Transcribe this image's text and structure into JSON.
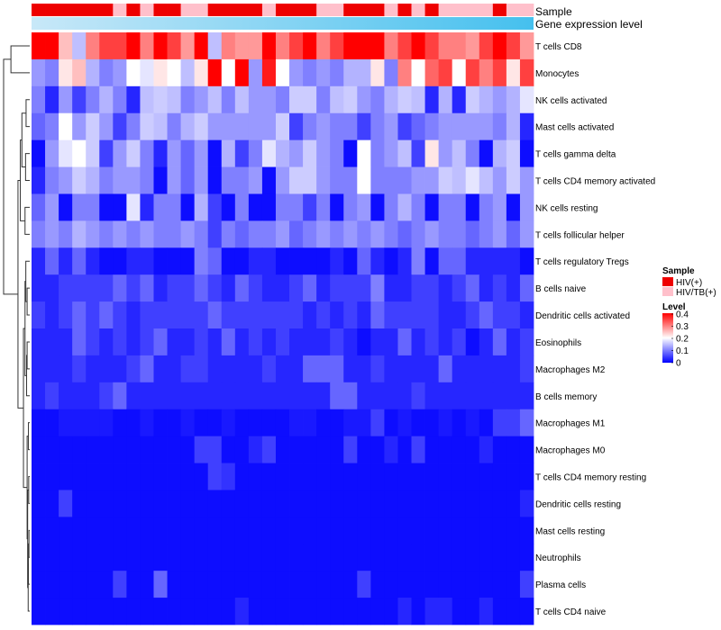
{
  "chart_data": {
    "type": "heatmap",
    "title": "",
    "annotation_tracks": [
      "Sample",
      "Gene expression level"
    ],
    "rows": [
      "T cells CD8",
      "Monocytes",
      "NK cells activated",
      "Mast cells activated",
      "T cells gamma delta",
      "T cells CD4 memory activated",
      "NK cells resting",
      "T cells follicular helper",
      "T cells regulatory  Tregs",
      "B cells naive",
      "Dendritic cells activated",
      "Eosinophils",
      "Macrophages M2",
      "B cells memory",
      "Macrophages M1",
      "Macrophages M0",
      "T cells CD4 memory resting",
      "Dendritic cells resting",
      "Mast cells resting",
      "Neutrophils",
      "Plasma cells",
      "T cells CD4 naive"
    ],
    "n_columns": 37,
    "sample_groups": [
      "HIV(+)",
      "HIV(+)",
      "HIV(+)",
      "HIV(+)",
      "HIV(+)",
      "HIV(+)",
      "HIV/TB(+)",
      "HIV(+)",
      "HIV/TB(+)",
      "HIV(+)",
      "HIV(+)",
      "HIV/TB(+)",
      "HIV/TB(+)",
      "HIV(+)",
      "HIV(+)",
      "HIV(+)",
      "HIV(+)",
      "HIV/TB(+)",
      "HIV(+)",
      "HIV(+)",
      "HIV(+)",
      "HIV/TB(+)",
      "HIV/TB(+)",
      "HIV(+)",
      "HIV(+)",
      "HIV(+)",
      "HIV/TB(+)",
      "HIV(+)",
      "HIV/TB(+)",
      "HIV(+)",
      "HIV/TB(+)",
      "HIV/TB(+)",
      "HIV/TB(+)",
      "HIV/TB(+)",
      "HIV(+)",
      "HIV/TB(+)",
      "HIV/TB(+)"
    ],
    "values": [
      [
        0.4,
        0.4,
        0.25,
        0.15,
        0.3,
        0.35,
        0.35,
        0.4,
        0.3,
        0.4,
        0.35,
        0.28,
        0.4,
        0.15,
        0.3,
        0.28,
        0.28,
        0.4,
        0.3,
        0.35,
        0.4,
        0.3,
        0.35,
        0.4,
        0.4,
        0.4,
        0.3,
        0.35,
        0.4,
        0.35,
        0.3,
        0.3,
        0.28,
        0.35,
        0.4,
        0.35,
        0.28
      ],
      [
        0.12,
        0.1,
        0.22,
        0.25,
        0.14,
        0.1,
        0.12,
        0.2,
        0.18,
        0.22,
        0.2,
        0.15,
        0.22,
        0.4,
        0.2,
        0.4,
        0.12,
        0.38,
        0.2,
        0.12,
        0.1,
        0.12,
        0.1,
        0.14,
        0.14,
        0.22,
        0.1,
        0.3,
        0.2,
        0.32,
        0.35,
        0.2,
        0.35,
        0.3,
        0.35,
        0.22,
        0.35
      ],
      [
        0.1,
        0.03,
        0.12,
        0.05,
        0.1,
        0.14,
        0.1,
        0.03,
        0.15,
        0.16,
        0.15,
        0.1,
        0.12,
        0.15,
        0.1,
        0.15,
        0.12,
        0.12,
        0.1,
        0.16,
        0.16,
        0.1,
        0.15,
        0.16,
        0.12,
        0.1,
        0.14,
        0.16,
        0.15,
        0.03,
        0.14,
        0.03,
        0.16,
        0.14,
        0.12,
        0.14,
        0.18
      ],
      [
        0.08,
        0.1,
        0.2,
        0.12,
        0.16,
        0.12,
        0.05,
        0.1,
        0.16,
        0.15,
        0.1,
        0.14,
        0.16,
        0.12,
        0.12,
        0.12,
        0.12,
        0.12,
        0.16,
        0.05,
        0.1,
        0.12,
        0.1,
        0.1,
        0.05,
        0.1,
        0.12,
        0.05,
        0.08,
        0.1,
        0.12,
        0.12,
        0.12,
        0.12,
        0.1,
        0.14,
        0.03
      ],
      [
        0.01,
        0.12,
        0.18,
        0.2,
        0.16,
        0.05,
        0.12,
        0.16,
        0.1,
        0.03,
        0.12,
        0.08,
        0.12,
        0.01,
        0.14,
        0.05,
        0.1,
        0.18,
        0.14,
        0.12,
        0.16,
        0.12,
        0.1,
        0.01,
        0.2,
        0.1,
        0.12,
        0.15,
        0.05,
        0.22,
        0.12,
        0.15,
        0.1,
        0.01,
        0.14,
        0.16,
        0.01
      ],
      [
        0.03,
        0.1,
        0.12,
        0.16,
        0.14,
        0.1,
        0.12,
        0.12,
        0.1,
        0.01,
        0.12,
        0.08,
        0.12,
        0.01,
        0.1,
        0.1,
        0.12,
        0.01,
        0.12,
        0.16,
        0.16,
        0.12,
        0.1,
        0.1,
        0.2,
        0.1,
        0.1,
        0.1,
        0.12,
        0.12,
        0.16,
        0.15,
        0.18,
        0.15,
        0.12,
        0.16,
        0.12
      ],
      [
        0.08,
        0.12,
        0.01,
        0.1,
        0.1,
        0.01,
        0.01,
        0.18,
        0.03,
        0.1,
        0.1,
        0.01,
        0.14,
        0.05,
        0.01,
        0.1,
        0.01,
        0.01,
        0.1,
        0.1,
        0.05,
        0.1,
        0.01,
        0.1,
        0.12,
        0.01,
        0.1,
        0.14,
        0.1,
        0.01,
        0.1,
        0.1,
        0.01,
        0.1,
        0.12,
        0.01,
        0.12
      ],
      [
        0.1,
        0.12,
        0.1,
        0.14,
        0.12,
        0.1,
        0.12,
        0.1,
        0.12,
        0.1,
        0.1,
        0.12,
        0.1,
        0.05,
        0.1,
        0.08,
        0.1,
        0.1,
        0.12,
        0.08,
        0.1,
        0.12,
        0.1,
        0.12,
        0.1,
        0.12,
        0.1,
        0.08,
        0.1,
        0.12,
        0.1,
        0.1,
        0.08,
        0.1,
        0.12,
        0.08,
        0.12
      ],
      [
        0.03,
        0.08,
        0.03,
        0.08,
        0.03,
        0.01,
        0.01,
        0.03,
        0.03,
        0.01,
        0.01,
        0.01,
        0.1,
        0.08,
        0.01,
        0.01,
        0.03,
        0.03,
        0.01,
        0.01,
        0.01,
        0.01,
        0.03,
        0.01,
        0.08,
        0.03,
        0.01,
        0.03,
        0.1,
        0.01,
        0.08,
        0.08,
        0.03,
        0.03,
        0.03,
        0.03,
        0.01
      ],
      [
        0.03,
        0.03,
        0.05,
        0.05,
        0.05,
        0.05,
        0.08,
        0.05,
        0.08,
        0.03,
        0.05,
        0.05,
        0.08,
        0.05,
        0.03,
        0.08,
        0.05,
        0.03,
        0.03,
        0.05,
        0.08,
        0.03,
        0.05,
        0.05,
        0.05,
        0.1,
        0.03,
        0.03,
        0.05,
        0.05,
        0.03,
        0.05,
        0.08,
        0.03,
        0.05,
        0.03,
        0.08
      ],
      [
        0.05,
        0.03,
        0.05,
        0.08,
        0.05,
        0.08,
        0.05,
        0.03,
        0.05,
        0.05,
        0.05,
        0.05,
        0.05,
        0.08,
        0.05,
        0.05,
        0.05,
        0.05,
        0.05,
        0.05,
        0.03,
        0.05,
        0.03,
        0.05,
        0.03,
        0.08,
        0.05,
        0.05,
        0.05,
        0.05,
        0.03,
        0.03,
        0.05,
        0.08,
        0.05,
        0.05,
        0.03
      ],
      [
        0.03,
        0.03,
        0.03,
        0.08,
        0.05,
        0.03,
        0.05,
        0.03,
        0.05,
        0.08,
        0.03,
        0.03,
        0.05,
        0.03,
        0.08,
        0.03,
        0.05,
        0.03,
        0.05,
        0.03,
        0.03,
        0.03,
        0.05,
        0.03,
        0.01,
        0.03,
        0.03,
        0.08,
        0.03,
        0.05,
        0.03,
        0.05,
        0.01,
        0.03,
        0.08,
        0.03,
        0.05
      ],
      [
        0.03,
        0.03,
        0.03,
        0.05,
        0.03,
        0.03,
        0.03,
        0.05,
        0.08,
        0.03,
        0.03,
        0.05,
        0.05,
        0.03,
        0.03,
        0.03,
        0.03,
        0.05,
        0.03,
        0.03,
        0.08,
        0.08,
        0.08,
        0.03,
        0.03,
        0.05,
        0.03,
        0.03,
        0.03,
        0.03,
        0.08,
        0.03,
        0.03,
        0.03,
        0.03,
        0.03,
        0.05
      ],
      [
        0.03,
        0.05,
        0.03,
        0.03,
        0.03,
        0.05,
        0.08,
        0.03,
        0.03,
        0.03,
        0.03,
        0.03,
        0.03,
        0.03,
        0.03,
        0.03,
        0.03,
        0.03,
        0.03,
        0.03,
        0.03,
        0.03,
        0.08,
        0.08,
        0.03,
        0.03,
        0.03,
        0.03,
        0.05,
        0.03,
        0.03,
        0.03,
        0.03,
        0.03,
        0.03,
        0.03,
        0.03
      ],
      [
        0.01,
        0.01,
        0.02,
        0.02,
        0.02,
        0.02,
        0.01,
        0.01,
        0.02,
        0.01,
        0.01,
        0.02,
        0.01,
        0.01,
        0.02,
        0.01,
        0.01,
        0.01,
        0.01,
        0.02,
        0.02,
        0.01,
        0.01,
        0.02,
        0.02,
        0.05,
        0.01,
        0.02,
        0.01,
        0.01,
        0.02,
        0.01,
        0.02,
        0.01,
        0.05,
        0.05,
        0.08
      ],
      [
        0.01,
        0.01,
        0.01,
        0.01,
        0.01,
        0.01,
        0.01,
        0.01,
        0.01,
        0.01,
        0.01,
        0.01,
        0.05,
        0.05,
        0.01,
        0.01,
        0.03,
        0.05,
        0.01,
        0.01,
        0.01,
        0.01,
        0.01,
        0.05,
        0.01,
        0.01,
        0.03,
        0.01,
        0.05,
        0.01,
        0.01,
        0.01,
        0.01,
        0.03,
        0.01,
        0.01,
        0.01
      ],
      [
        0.01,
        0.01,
        0.01,
        0.01,
        0.01,
        0.01,
        0.01,
        0.01,
        0.01,
        0.01,
        0.01,
        0.01,
        0.01,
        0.05,
        0.04,
        0.01,
        0.01,
        0.01,
        0.01,
        0.01,
        0.01,
        0.01,
        0.01,
        0.01,
        0.01,
        0.01,
        0.01,
        0.01,
        0.01,
        0.01,
        0.01,
        0.01,
        0.01,
        0.01,
        0.01,
        0.01,
        0.01
      ],
      [
        0.01,
        0.01,
        0.05,
        0.01,
        0.01,
        0.01,
        0.01,
        0.01,
        0.01,
        0.01,
        0.01,
        0.01,
        0.01,
        0.01,
        0.01,
        0.01,
        0.01,
        0.01,
        0.01,
        0.01,
        0.01,
        0.01,
        0.01,
        0.01,
        0.01,
        0.01,
        0.01,
        0.01,
        0.01,
        0.01,
        0.01,
        0.01,
        0.01,
        0.01,
        0.01,
        0.01,
        0.03
      ],
      [
        0.01,
        0.01,
        0.01,
        0.01,
        0.01,
        0.01,
        0.01,
        0.01,
        0.01,
        0.01,
        0.01,
        0.01,
        0.01,
        0.01,
        0.01,
        0.01,
        0.01,
        0.01,
        0.01,
        0.01,
        0.01,
        0.01,
        0.01,
        0.01,
        0.01,
        0.01,
        0.01,
        0.01,
        0.01,
        0.01,
        0.01,
        0.01,
        0.01,
        0.01,
        0.01,
        0.01,
        0.01
      ],
      [
        0.01,
        0.01,
        0.01,
        0.01,
        0.01,
        0.01,
        0.01,
        0.01,
        0.01,
        0.01,
        0.01,
        0.01,
        0.01,
        0.01,
        0.01,
        0.01,
        0.01,
        0.01,
        0.01,
        0.01,
        0.01,
        0.01,
        0.01,
        0.01,
        0.01,
        0.01,
        0.01,
        0.01,
        0.01,
        0.01,
        0.01,
        0.01,
        0.01,
        0.01,
        0.01,
        0.01,
        0.01
      ],
      [
        0.01,
        0.01,
        0.01,
        0.01,
        0.01,
        0.01,
        0.05,
        0.01,
        0.01,
        0.08,
        0.01,
        0.01,
        0.01,
        0.01,
        0.01,
        0.01,
        0.01,
        0.01,
        0.01,
        0.01,
        0.01,
        0.01,
        0.01,
        0.01,
        0.05,
        0.01,
        0.01,
        0.01,
        0.01,
        0.01,
        0.01,
        0.01,
        0.01,
        0.01,
        0.01,
        0.01,
        0.05
      ],
      [
        0.01,
        0.01,
        0.01,
        0.01,
        0.01,
        0.01,
        0.01,
        0.01,
        0.01,
        0.01,
        0.01,
        0.01,
        0.01,
        0.01,
        0.01,
        0.03,
        0.01,
        0.01,
        0.01,
        0.01,
        0.01,
        0.01,
        0.01,
        0.01,
        0.01,
        0.01,
        0.01,
        0.03,
        0.01,
        0.03,
        0.03,
        0.01,
        0.01,
        0.03,
        0.01,
        0.01,
        0.01
      ]
    ],
    "legend": {
      "sample_title": "Sample",
      "sample_entries": [
        {
          "label": "HIV(+)",
          "color": "#ee0000"
        },
        {
          "label": "HIV/TB(+)",
          "color": "#ffc0cb"
        }
      ],
      "level_title": "Level",
      "level_ticks": [
        "0.4",
        "0.3",
        "0.2",
        "0.1",
        "0"
      ],
      "level_range": [
        0,
        0.4
      ],
      "placement": "right-middle"
    },
    "colors": {
      "low": "#0000ff",
      "mid": "#ffffff",
      "high": "#ff0000",
      "expr_start": "#c8e8f8",
      "expr_end": "#45c0ee"
    }
  }
}
